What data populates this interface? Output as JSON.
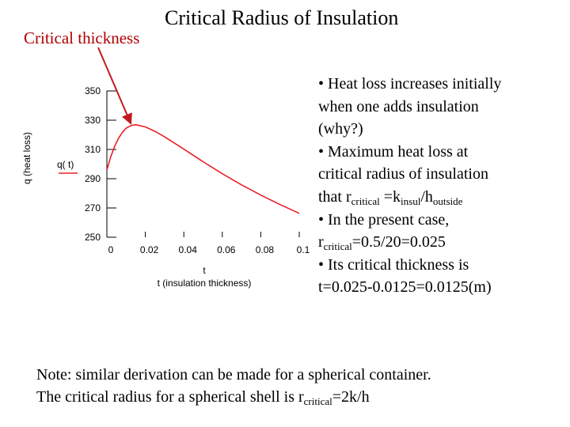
{
  "slide": {
    "title": "Critical Radius of Insulation",
    "annotation_label": "Critical thickness"
  },
  "colors": {
    "curve": "#e8202a",
    "arrow": "#c01a20",
    "annotation_text": "#b00000",
    "axes": "#000000"
  },
  "chart_data": {
    "type": "line",
    "title": "",
    "xlabel_symbol": "t",
    "xlabel": "t (insulation thickness)",
    "ylabel_symbol": "q( t)",
    "ylabel": "q (heat loss)",
    "xlim": [
      0,
      0.1
    ],
    "ylim": [
      250,
      350
    ],
    "x_ticks": [
      0,
      0.02,
      0.04,
      0.06,
      0.08,
      0.1
    ],
    "x_tick_labels": [
      "0",
      "0.02",
      "0.04",
      "0.06",
      "0.08",
      "0.1"
    ],
    "y_ticks": [
      250,
      270,
      290,
      310,
      330,
      350
    ],
    "y_tick_labels": [
      "250",
      "270",
      "290",
      "310",
      "330",
      "350"
    ],
    "grid": false,
    "series": [
      {
        "x": [
          0,
          0.002,
          0.004,
          0.006,
          0.008,
          0.01,
          0.0125,
          0.015,
          0.02,
          0.025,
          0.03,
          0.04,
          0.05,
          0.06,
          0.07,
          0.08,
          0.09,
          0.1
        ],
        "values": [
          296,
          305,
          312,
          317.5,
          321.5,
          324.5,
          326.3,
          326.9,
          325.4,
          322.4,
          318.6,
          310.2,
          301.6,
          293.4,
          285.8,
          278.8,
          272.3,
          266.3
        ]
      }
    ],
    "annotation": {
      "text": "Critical thickness",
      "points_to": {
        "x": 0.0125,
        "y": 326.5
      }
    }
  },
  "bullets": [
    {
      "parts": [
        {
          "t": "• Heat loss increases initially"
        }
      ]
    },
    {
      "parts": [
        {
          "t": "when one adds insulation"
        }
      ]
    },
    {
      "parts": [
        {
          "t": "(why?)"
        }
      ]
    },
    {
      "parts": [
        {
          "t": "• Maximum heat loss at"
        }
      ]
    },
    {
      "parts": [
        {
          "t": "critical radius of insulation"
        }
      ]
    },
    {
      "parts": [
        {
          "t": "that r"
        },
        {
          "t": "critical",
          "sub": true
        },
        {
          "t": " =k"
        },
        {
          "t": "insul",
          "sub": true
        },
        {
          "t": "/h"
        },
        {
          "t": "outside",
          "sub": true
        }
      ]
    },
    {
      "parts": [
        {
          "t": "• In the present case,"
        }
      ]
    },
    {
      "parts": [
        {
          "t": "r"
        },
        {
          "t": "critical",
          "sub": true
        },
        {
          "t": "=0.5/20=0.025"
        }
      ]
    },
    {
      "parts": [
        {
          "t": "• Its critical thickness is"
        }
      ]
    },
    {
      "parts": [
        {
          "t": "t=0.025-0.0125=0.0125(m)"
        }
      ]
    }
  ],
  "note": [
    {
      "parts": [
        {
          "t": "Note: similar derivation can be made for a spherical container."
        }
      ]
    },
    {
      "parts": [
        {
          "t": "The critical radius for a spherical shell is r"
        },
        {
          "t": "critical",
          "sub": true
        },
        {
          "t": "=2k/h"
        }
      ]
    }
  ]
}
